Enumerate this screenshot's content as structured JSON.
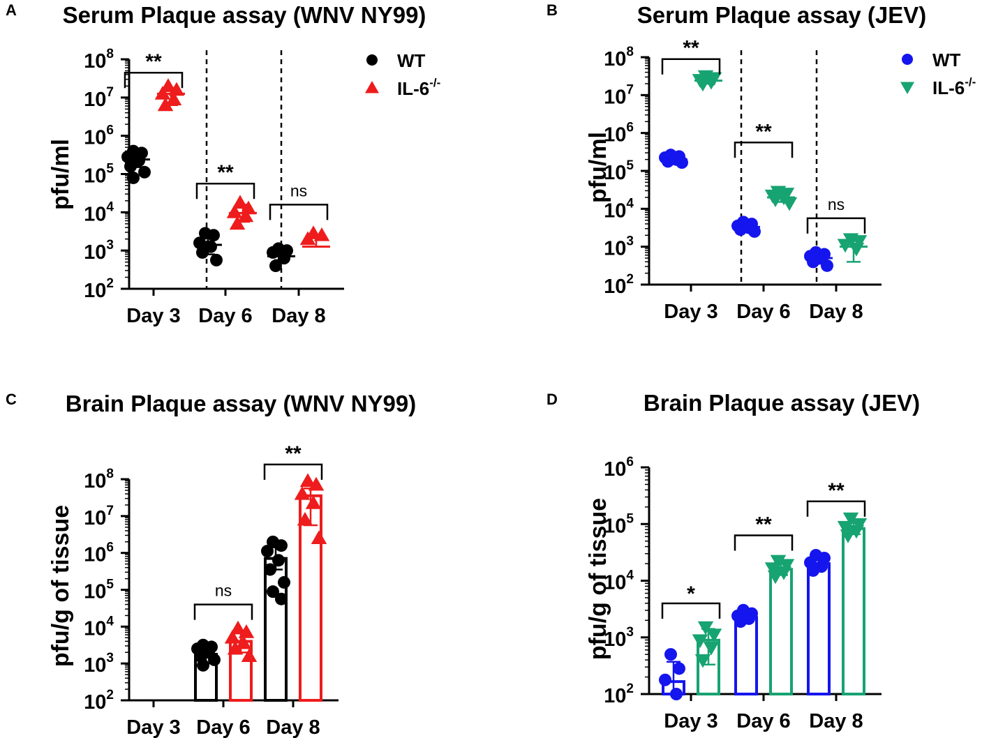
{
  "colors": {
    "axis": "#000000",
    "wt_wnv": "#000000",
    "il6_wnv": "#ee1c1c",
    "wt_jev": "#1515ee",
    "il6_jev": "#17a372"
  },
  "chart_data": [
    {
      "id": "A",
      "panel_label": "A",
      "type": "scatter",
      "scale": "log10",
      "title": "Serum Plaque assay (WNV NY99)",
      "ylabel": "pfu/ml",
      "ylim_exp": [
        2,
        8
      ],
      "yticks": [
        {
          "base": "10",
          "exp": "2"
        },
        {
          "base": "10",
          "exp": "3"
        },
        {
          "base": "10",
          "exp": "4"
        },
        {
          "base": "10",
          "exp": "5"
        },
        {
          "base": "10",
          "exp": "6"
        },
        {
          "base": "10",
          "exp": "7"
        },
        {
          "base": "10",
          "exp": "8"
        }
      ],
      "categories": [
        "Day 3",
        "Day 6",
        "Day 8"
      ],
      "dividers": true,
      "legend": {
        "position": "top-right",
        "entries": [
          {
            "series": 0,
            "text": "WT",
            "sup": ""
          },
          {
            "series": 1,
            "text": "IL-6",
            "sup": "-/-"
          }
        ]
      },
      "series": [
        {
          "name": "WT",
          "color_key": "wt_wnv",
          "marker": "circle",
          "groups": [
            {
              "mean": 5.38,
              "sd": [
                5.18,
                5.55
              ],
              "points": [
                5.6,
                5.55,
                5.45,
                5.35,
                5.2,
                5.05,
                4.9
              ]
            },
            {
              "mean": 3.15,
              "sd": [
                2.9,
                3.38
              ],
              "points": [
                3.45,
                3.4,
                3.2,
                3.1,
                2.95,
                2.75
              ]
            },
            {
              "mean": 2.85,
              "sd": [
                2.75,
                3.05
              ],
              "points": [
                3.05,
                3.0,
                2.95,
                2.8,
                2.6
              ]
            }
          ]
        },
        {
          "name": "IL-6",
          "color_key": "il6_wnv",
          "marker": "triangle-up",
          "groups": [
            {
              "mean": 7.1,
              "sd": [
                6.8,
                7.25
              ],
              "points": [
                7.3,
                7.2,
                7.1,
                6.95,
                6.8
              ]
            },
            {
              "mean": 3.98,
              "sd": [
                3.75,
                4.2
              ],
              "points": [
                4.25,
                4.1,
                4.0,
                3.9,
                3.7
              ]
            },
            {
              "mean": 3.1,
              "sd": [
                3.1,
                3.4
              ],
              "points": [
                3.45,
                3.4,
                3.3
              ]
            }
          ]
        }
      ],
      "comparisons": [
        {
          "group": 0,
          "label": "**",
          "y": 7.65
        },
        {
          "group": 1,
          "label": "**",
          "y": 4.75
        },
        {
          "group": 2,
          "label": "ns",
          "y": 4.2
        }
      ]
    },
    {
      "id": "B",
      "panel_label": "B",
      "type": "scatter",
      "scale": "log10",
      "title": "Serum Plaque assay (JEV)",
      "ylabel": "pfu/ml",
      "ylim_exp": [
        2,
        8
      ],
      "yticks": [
        {
          "base": "10",
          "exp": "2"
        },
        {
          "base": "10",
          "exp": "3"
        },
        {
          "base": "10",
          "exp": "4"
        },
        {
          "base": "10",
          "exp": "5"
        },
        {
          "base": "10",
          "exp": "6"
        },
        {
          "base": "10",
          "exp": "7"
        },
        {
          "base": "10",
          "exp": "8"
        }
      ],
      "categories": [
        "Day 3",
        "Day 6",
        "Day 8"
      ],
      "dividers": true,
      "legend": {
        "position": "top-right",
        "entries": [
          {
            "series": 0,
            "text": "WT",
            "sup": ""
          },
          {
            "series": 1,
            "text": "IL-6",
            "sup": "-/-"
          }
        ]
      },
      "series": [
        {
          "name": "WT",
          "color_key": "wt_jev",
          "marker": "circle",
          "groups": [
            {
              "mean": 5.3,
              "sd": [
                5.22,
                5.4
              ],
              "points": [
                5.42,
                5.38,
                5.35,
                5.3,
                5.25,
                5.22
              ]
            },
            {
              "mean": 3.52,
              "sd": [
                3.42,
                3.62
              ],
              "points": [
                3.65,
                3.6,
                3.55,
                3.5,
                3.45,
                3.4
              ]
            },
            {
              "mean": 2.7,
              "sd": [
                2.55,
                2.82
              ],
              "points": [
                2.85,
                2.8,
                2.75,
                2.7,
                2.6,
                2.5
              ]
            }
          ]
        },
        {
          "name": "IL-6",
          "color_key": "il6_jev",
          "marker": "triangle-down",
          "groups": [
            {
              "mean": 7.38,
              "sd": [
                7.3,
                7.46
              ],
              "points": [
                7.5,
                7.45,
                7.4,
                7.35,
                7.3
              ]
            },
            {
              "mean": 4.3,
              "sd": [
                4.18,
                4.42
              ],
              "points": [
                4.45,
                4.4,
                4.35,
                4.3,
                4.25,
                4.15
              ]
            },
            {
              "mean": 3.0,
              "sd": [
                2.6,
                3.15
              ],
              "points": [
                3.2,
                3.15,
                3.05,
                2.95
              ]
            }
          ]
        }
      ],
      "comparisons": [
        {
          "group": 0,
          "label": "**",
          "y": 7.95
        },
        {
          "group": 1,
          "label": "**",
          "y": 5.75
        },
        {
          "group": 2,
          "label": "ns",
          "y": 3.75
        }
      ]
    },
    {
      "id": "C",
      "panel_label": "C",
      "type": "bar",
      "scale": "log10",
      "title": "Brain Plaque assay (WNV NY99)",
      "ylabel": "pfu/g of tissue",
      "ylim_exp": [
        2,
        8
      ],
      "yticks": [
        {
          "base": "10",
          "exp": "2"
        },
        {
          "base": "10",
          "exp": "3"
        },
        {
          "base": "10",
          "exp": "4"
        },
        {
          "base": "10",
          "exp": "5"
        },
        {
          "base": "10",
          "exp": "6"
        },
        {
          "base": "10",
          "exp": "7"
        },
        {
          "base": "10",
          "exp": "8"
        }
      ],
      "categories": [
        "Day 3",
        "Day 6",
        "Day 8"
      ],
      "dividers": false,
      "legend": null,
      "series": [
        {
          "name": "WT",
          "color_key": "wt_wnv",
          "marker": "circle",
          "groups": [
            null,
            {
              "mean": 3.25,
              "sd": [
                3.0,
                3.45
              ],
              "points": [
                3.5,
                3.45,
                3.4,
                3.3,
                3.2,
                3.1,
                2.95
              ]
            },
            {
              "mean": 5.85,
              "sd": [
                5.55,
                6.15
              ],
              "points": [
                6.3,
                6.2,
                6.05,
                5.8,
                5.55,
                5.2,
                4.95,
                4.75
              ]
            }
          ]
        },
        {
          "name": "IL-6",
          "color_key": "il6_wnv",
          "marker": "triangle-up",
          "groups": [
            null,
            {
              "mean": 3.6,
              "sd": [
                3.3,
                3.9
              ],
              "points": [
                3.95,
                3.85,
                3.7,
                3.55,
                3.4,
                3.2
              ]
            },
            {
              "mean": 7.55,
              "sd": [
                6.75,
                7.75
              ],
              "points": [
                7.95,
                7.85,
                7.6,
                7.35,
                6.9,
                6.4
              ]
            }
          ]
        }
      ],
      "comparisons": [
        {
          "group": 1,
          "label": "ns",
          "y": 4.6
        },
        {
          "group": 2,
          "label": "**",
          "y": 8.4
        }
      ]
    },
    {
      "id": "D",
      "panel_label": "D",
      "type": "bar",
      "scale": "log10",
      "title": "Brain Plaque assay (JEV)",
      "ylabel": "pfu/g of tissue",
      "ylim_exp": [
        2,
        6
      ],
      "yticks": [
        {
          "base": "10",
          "exp": "2"
        },
        {
          "base": "10",
          "exp": "3"
        },
        {
          "base": "10",
          "exp": "4"
        },
        {
          "base": "10",
          "exp": "5"
        },
        {
          "base": "10",
          "exp": "6"
        }
      ],
      "categories": [
        "Day 3",
        "Day 6",
        "Day 8"
      ],
      "dividers": false,
      "legend": null,
      "series": [
        {
          "name": "WT",
          "color_key": "wt_jev",
          "marker": "circle",
          "groups": [
            {
              "mean": 2.22,
              "sd": [
                2.0,
                2.57
              ],
              "points": [
                2.7,
                2.45,
                2.25,
                2.0
              ]
            },
            {
              "mean": 3.35,
              "sd": [
                3.28,
                3.45
              ],
              "points": [
                3.48,
                3.42,
                3.38,
                3.33,
                3.28
              ]
            },
            {
              "mean": 4.3,
              "sd": [
                4.2,
                4.4
              ],
              "points": [
                4.45,
                4.4,
                4.32,
                4.25,
                4.18
              ]
            }
          ]
        },
        {
          "name": "IL-6",
          "color_key": "il6_jev",
          "marker": "triangle-down",
          "groups": [
            {
              "mean": 2.95,
              "sd": [
                2.52,
                3.15
              ],
              "points": [
                3.18,
                3.05,
                2.95,
                2.82,
                2.6
              ]
            },
            {
              "mean": 4.2,
              "sd": [
                4.1,
                4.32
              ],
              "points": [
                4.35,
                4.28,
                4.22,
                4.15,
                4.08
              ]
            },
            {
              "mean": 4.92,
              "sd": [
                4.82,
                5.02
              ],
              "points": [
                5.1,
                5.0,
                4.95,
                4.88,
                4.8
              ]
            }
          ]
        }
      ],
      "comparisons": [
        {
          "group": 0,
          "label": "*",
          "y": 3.6
        },
        {
          "group": 1,
          "label": "**",
          "y": 4.8
        },
        {
          "group": 2,
          "label": "**",
          "y": 5.4
        }
      ]
    }
  ]
}
